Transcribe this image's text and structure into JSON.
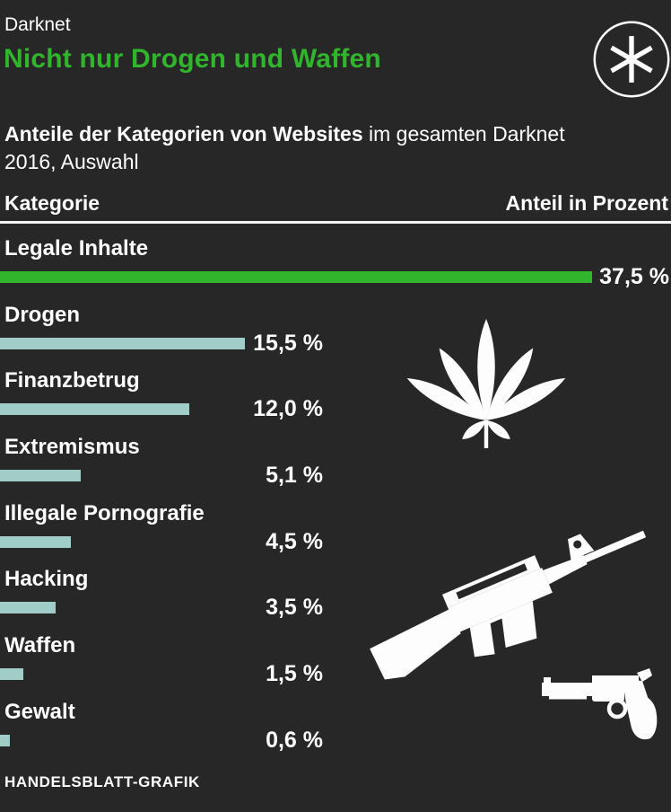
{
  "header": {
    "kicker": "Darknet",
    "title": "Nicht nur Drogen und Waffen"
  },
  "subtitle": {
    "bold": "Anteile der Kategorien von Websites",
    "regular": " im gesamten Darknet 2016, Auswahl"
  },
  "table_header": {
    "category": "Kategorie",
    "share": "Anteil in Prozent"
  },
  "chart_data": {
    "type": "bar",
    "orientation": "horizontal",
    "unit": "%",
    "xlim": [
      0,
      37.5
    ],
    "categories": [
      "Legale Inhalte",
      "Drogen",
      "Finanzbetrug",
      "Extremismus",
      "Illegale Pornografie",
      "Hacking",
      "Waffen",
      "Gewalt"
    ],
    "values": [
      37.5,
      15.5,
      12.0,
      5.1,
      4.5,
      3.5,
      1.5,
      0.6
    ],
    "display_values": [
      "37,5 %",
      "15,5 %",
      "12,0 %",
      "5,1 %",
      "4,5 %",
      "3,5 %",
      "1,5 %",
      "0,6 %"
    ],
    "highlight_index": 0,
    "grid": false,
    "legend": false
  },
  "icons": [
    "asterisk-logo-icon",
    "cannabis-leaf-icon",
    "rifle-icon",
    "revolver-icon"
  ],
  "footer": {
    "credit": "HANDELSBLATT-GRAFIK"
  },
  "colors": {
    "background": "#272727",
    "accent-green": "#31b52c",
    "bar-teal": "#a0cdc8",
    "text": "#ffffff",
    "rule": "#f2f2f2"
  }
}
